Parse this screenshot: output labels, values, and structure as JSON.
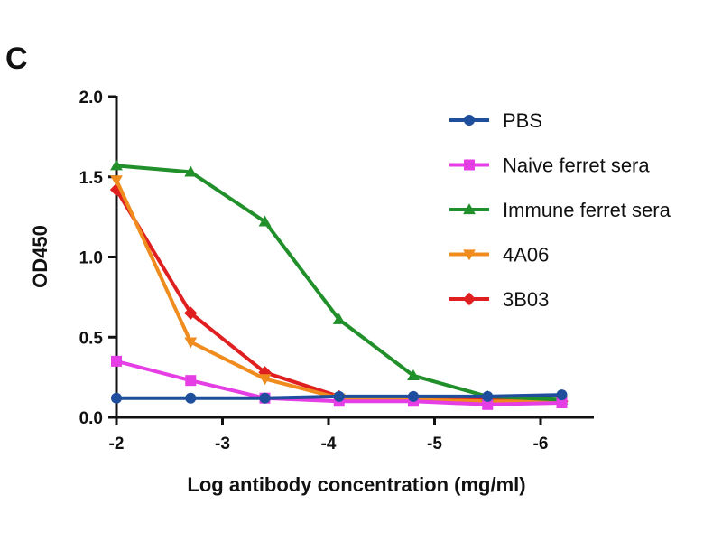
{
  "panel_label": "C",
  "chart_data": {
    "type": "line",
    "title": "",
    "xlabel": "Log antibody concentration (mg/ml)",
    "ylabel": "OD450",
    "xlim": [
      -2,
      -6.3
    ],
    "ylim": [
      0,
      2.0
    ],
    "x_ticks": [
      -2,
      -3,
      -4,
      -5,
      -6
    ],
    "x_tick_labels": [
      "-2",
      "-3",
      "-4",
      "-5",
      "-6"
    ],
    "y_ticks": [
      0,
      0.5,
      1.0,
      1.5,
      2.0
    ],
    "y_tick_labels": [
      "0.0",
      "0.5",
      "1.0",
      "1.5",
      "2.0"
    ],
    "legend_position": "top-right",
    "series": [
      {
        "name": "PBS",
        "color": "#1f4e9c",
        "marker": "circle",
        "x": [
          -2,
          -2.7,
          -3.4,
          -4.1,
          -4.8,
          -5.5,
          -6.2
        ],
        "values": [
          0.12,
          0.12,
          0.12,
          0.13,
          0.13,
          0.13,
          0.14
        ]
      },
      {
        "name": "Naive ferret sera",
        "color": "#e53ee5",
        "marker": "square",
        "x": [
          -2,
          -2.7,
          -3.4,
          -4.1,
          -4.8,
          -5.5,
          -6.2
        ],
        "values": [
          0.35,
          0.23,
          0.12,
          0.1,
          0.1,
          0.08,
          0.09
        ]
      },
      {
        "name": "Immune ferret sera",
        "color": "#21902a",
        "marker": "triangle-up",
        "x": [
          -2,
          -2.7,
          -3.4,
          -4.1,
          -4.8,
          -5.5,
          -6.2
        ],
        "values": [
          1.57,
          1.53,
          1.22,
          0.61,
          0.26,
          0.13,
          0.11
        ]
      },
      {
        "name": "4A06",
        "color": "#f08c1e",
        "marker": "triangle-down",
        "x": [
          -2,
          -2.7,
          -3.4,
          -4.1,
          -4.8,
          -5.5,
          -6.2
        ],
        "values": [
          1.48,
          0.47,
          0.24,
          0.12,
          0.11,
          0.1,
          0.1
        ]
      },
      {
        "name": "3B03",
        "color": "#e02020",
        "marker": "diamond",
        "x": [
          -2,
          -2.7,
          -3.4,
          -4.1,
          -4.8,
          -5.5,
          -6.2
        ],
        "values": [
          1.42,
          0.65,
          0.28,
          0.13,
          0.12,
          0.11,
          0.1
        ]
      }
    ]
  }
}
